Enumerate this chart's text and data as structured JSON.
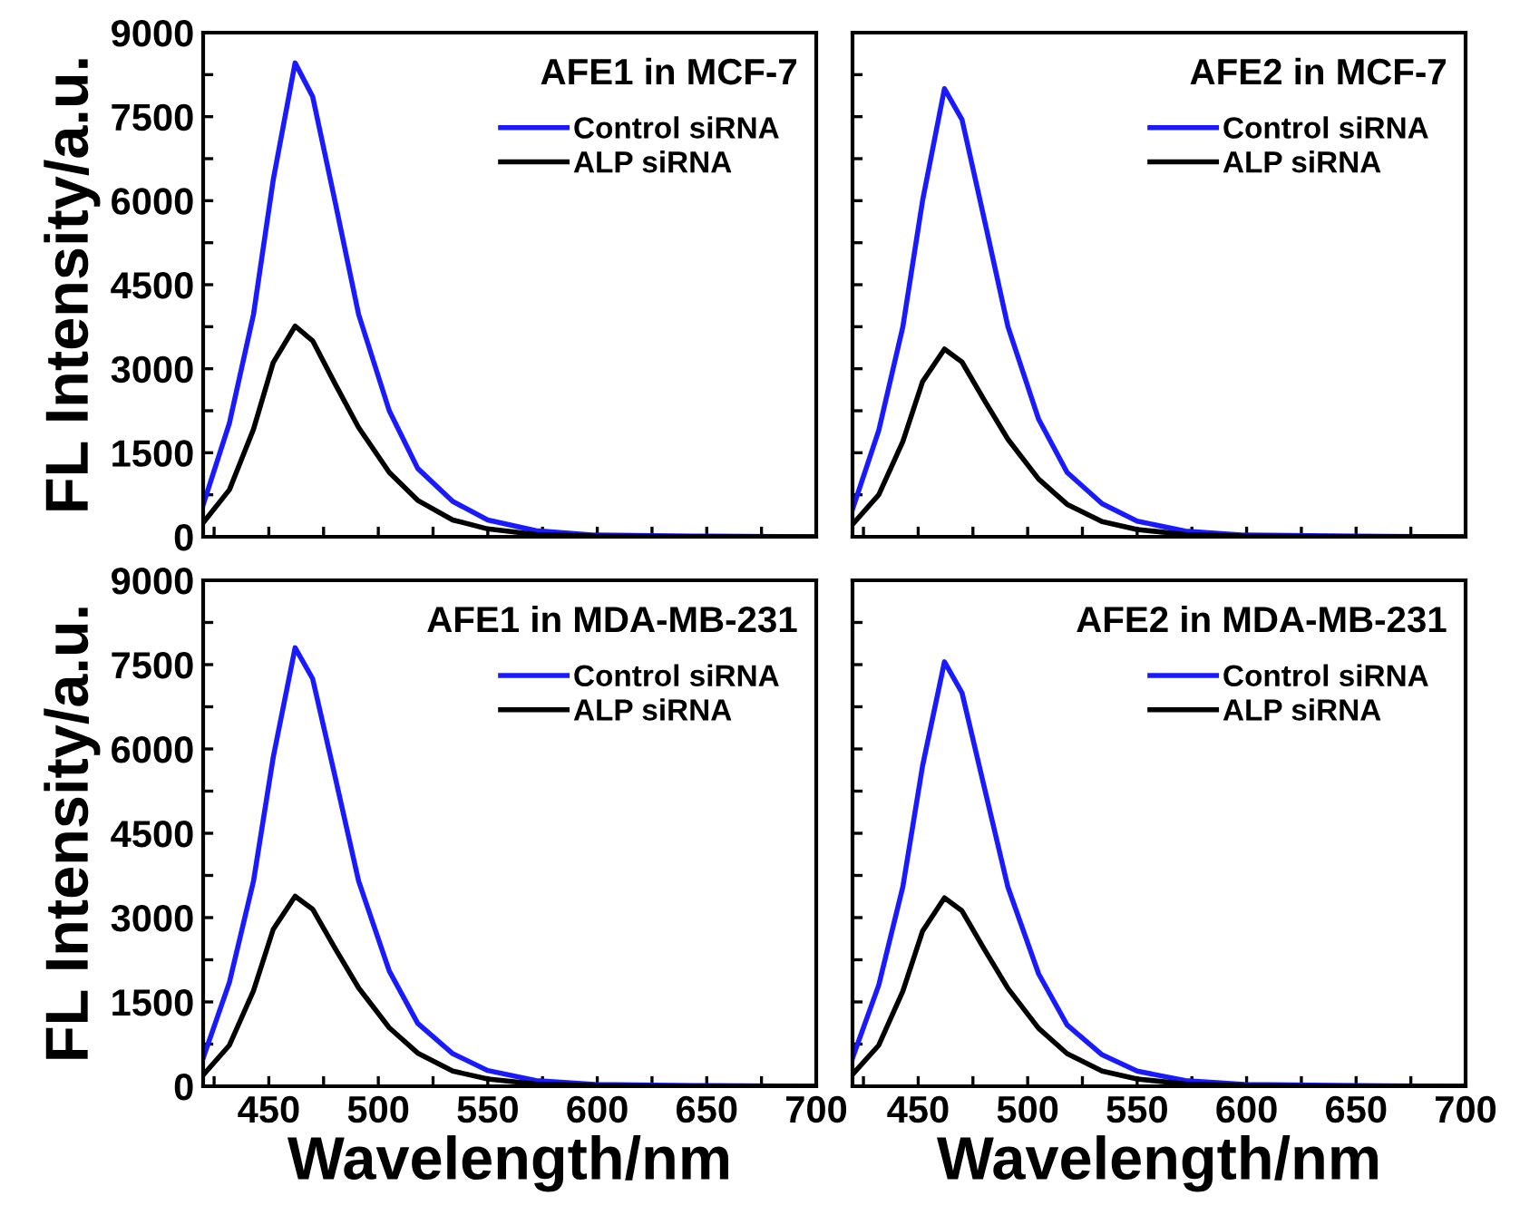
{
  "chart_data": [
    {
      "type": "line",
      "title": "AFE1 in MCF-7",
      "ylabel": "FL Intensity/a.u.",
      "x": [
        420,
        432,
        443,
        452,
        462,
        470,
        480,
        491,
        505,
        518,
        534,
        550,
        572,
        599,
        650,
        700
      ],
      "series": [
        {
          "name": "Control siRNA",
          "color": "#1a1aff",
          "values": [
            570,
            2030,
            3970,
            6370,
            8460,
            7860,
            6030,
            3970,
            2250,
            1220,
            630,
            300,
            110,
            30,
            10,
            0
          ]
        },
        {
          "name": "ALP siRNA",
          "color": "#000000",
          "values": [
            250,
            840,
            1920,
            3110,
            3760,
            3500,
            2750,
            1950,
            1150,
            650,
            300,
            140,
            40,
            10,
            0,
            0
          ]
        }
      ],
      "xlim": [
        420,
        700
      ],
      "xticks": [
        {
          "value": 425,
          "label": null
        },
        450,
        {
          "value": 475,
          "label": null
        },
        500,
        {
          "value": 525,
          "label": null
        },
        550,
        {
          "value": 575,
          "label": null
        },
        600,
        {
          "value": 625,
          "label": null
        },
        650,
        {
          "value": 675,
          "label": null
        },
        700
      ],
      "ylim": [
        0,
        9000
      ],
      "yticks": [
        0,
        {
          "value": 750,
          "label": null
        },
        1500,
        {
          "value": 2250,
          "label": null
        },
        3000,
        {
          "value": 3750,
          "label": null
        },
        4500,
        {
          "value": 5250,
          "label": null
        },
        6000,
        {
          "value": 6750,
          "label": null
        },
        7500,
        {
          "value": 8250,
          "label": null
        },
        9000
      ],
      "tick_labels": "y",
      "legend": "top right",
      "grid": false
    },
    {
      "type": "line",
      "title": "AFE2 in MCF-7",
      "x": [
        420,
        432,
        443,
        452,
        462,
        470,
        480,
        491,
        505,
        518,
        534,
        550,
        572,
        599,
        650,
        700
      ],
      "series": [
        {
          "name": "Control siRNA",
          "color": "#1a1aff",
          "values": [
            490,
            1900,
            3750,
            6000,
            8000,
            7450,
            5700,
            3750,
            2100,
            1150,
            590,
            280,
            100,
            30,
            10,
            0
          ]
        },
        {
          "name": "ALP siRNA",
          "color": "#000000",
          "values": [
            220,
            750,
            1700,
            2770,
            3350,
            3120,
            2450,
            1740,
            1030,
            580,
            270,
            130,
            40,
            10,
            0,
            0
          ]
        }
      ],
      "xlim": [
        420,
        700
      ],
      "xticks": [
        {
          "value": 425,
          "label": null
        },
        450,
        {
          "value": 475,
          "label": null
        },
        500,
        {
          "value": 525,
          "label": null
        },
        550,
        {
          "value": 575,
          "label": null
        },
        600,
        {
          "value": 625,
          "label": null
        },
        650,
        {
          "value": 675,
          "label": null
        },
        700
      ],
      "ylim": [
        0,
        9000
      ],
      "yticks": [
        0,
        {
          "value": 750,
          "label": null
        },
        1500,
        {
          "value": 2250,
          "label": null
        },
        3000,
        {
          "value": 3750,
          "label": null
        },
        4500,
        {
          "value": 5250,
          "label": null
        },
        6000,
        {
          "value": 6750,
          "label": null
        },
        7500,
        {
          "value": 8250,
          "label": null
        },
        9000
      ],
      "tick_labels": false,
      "legend": "top right",
      "grid": false
    },
    {
      "type": "line",
      "title": "AFE1 in MDA-MB-231",
      "xlabel": "Wavelength/nm",
      "ylabel": "FL Intensity/a.u.",
      "x": [
        420,
        432,
        443,
        452,
        462,
        470,
        480,
        491,
        505,
        518,
        534,
        550,
        572,
        599,
        650,
        700
      ],
      "series": [
        {
          "name": "Control siRNA",
          "color": "#1a1aff",
          "values": [
            500,
            1850,
            3650,
            5850,
            7800,
            7250,
            5550,
            3650,
            2050,
            1120,
            580,
            280,
            100,
            30,
            10,
            0
          ]
        },
        {
          "name": "ALP siRNA",
          "color": "#000000",
          "values": [
            200,
            730,
            1700,
            2790,
            3380,
            3150,
            2470,
            1750,
            1040,
            590,
            270,
            130,
            40,
            10,
            0,
            0
          ]
        }
      ],
      "xlim": [
        420,
        700
      ],
      "xticks": [
        {
          "value": 425,
          "label": null
        },
        450,
        {
          "value": 475,
          "label": null
        },
        500,
        {
          "value": 525,
          "label": null
        },
        550,
        {
          "value": 575,
          "label": null
        },
        600,
        {
          "value": 625,
          "label": null
        },
        650,
        {
          "value": 675,
          "label": null
        },
        700
      ],
      "ylim": [
        0,
        9000
      ],
      "yticks": [
        0,
        {
          "value": 750,
          "label": null
        },
        1500,
        {
          "value": 2250,
          "label": null
        },
        3000,
        {
          "value": 3750,
          "label": null
        },
        4500,
        {
          "value": 5250,
          "label": null
        },
        6000,
        {
          "value": 6750,
          "label": null
        },
        7500,
        {
          "value": 8250,
          "label": null
        },
        9000
      ],
      "legend": "top right",
      "grid": false
    },
    {
      "type": "line",
      "title": "AFE2 in MDA-MB-231",
      "xlabel": "Wavelength/nm",
      "x": [
        420,
        432,
        443,
        452,
        462,
        470,
        480,
        491,
        505,
        518,
        534,
        550,
        572,
        599,
        650,
        700
      ],
      "series": [
        {
          "name": "Control siRNA",
          "color": "#1a1aff",
          "values": [
            500,
            1800,
            3550,
            5700,
            7550,
            7000,
            5350,
            3540,
            2000,
            1090,
            560,
            270,
            100,
            30,
            10,
            0
          ]
        },
        {
          "name": "ALP siRNA",
          "color": "#000000",
          "values": [
            210,
            730,
            1690,
            2760,
            3350,
            3120,
            2450,
            1740,
            1030,
            580,
            270,
            130,
            40,
            10,
            0,
            0
          ]
        }
      ],
      "xlim": [
        420,
        700
      ],
      "xticks": [
        {
          "value": 425,
          "label": null
        },
        450,
        {
          "value": 475,
          "label": null
        },
        500,
        {
          "value": 525,
          "label": null
        },
        550,
        {
          "value": 575,
          "label": null
        },
        600,
        {
          "value": 625,
          "label": null
        },
        650,
        {
          "value": 675,
          "label": null
        },
        700
      ],
      "ylim": [
        0,
        9000
      ],
      "yticks": [
        0,
        {
          "value": 750,
          "label": null
        },
        1500,
        {
          "value": 2250,
          "label": null
        },
        3000,
        {
          "value": 3750,
          "label": null
        },
        4500,
        {
          "value": 5250,
          "label": null
        },
        6000,
        {
          "value": 6750,
          "label": null
        },
        7500,
        {
          "value": 8250,
          "label": null
        },
        9000
      ],
      "tick_labels": "x",
      "legend": "top right",
      "grid": false
    }
  ]
}
